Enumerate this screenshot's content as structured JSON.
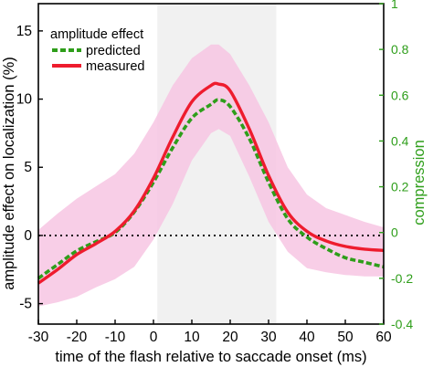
{
  "chart_data": {
    "type": "line",
    "title": "",
    "xlabel": "time of the flash relative to saccade onset (ms)",
    "ylabel": "amplitude effect on localization (%)",
    "y2label": "compression",
    "xlim": [
      -30,
      60
    ],
    "ylim": [
      -6.5,
      17.0
    ],
    "y2lim": [
      -0.4,
      1.0
    ],
    "xticks": [
      -30,
      -20,
      -10,
      0,
      10,
      20,
      30,
      40,
      50,
      60
    ],
    "yticks": [
      -5,
      0,
      5,
      10,
      15
    ],
    "y2ticks": [
      -0.4,
      -0.2,
      0,
      0.2,
      0.4,
      0.6,
      0.8,
      1
    ],
    "y2ticklabels": [
      "-0.4",
      "-0.2",
      "0",
      "0.2",
      "0.4",
      "0.6",
      "0.8",
      "1"
    ],
    "zero_line": 0,
    "saccade_window": [
      1,
      32
    ],
    "legend": {
      "title": "amplitude effect",
      "placement": "top-left",
      "entries": [
        {
          "label": "predicted",
          "series": "predicted"
        },
        {
          "label": "measured",
          "series": "measured"
        }
      ]
    },
    "series": [
      {
        "name": "measured",
        "axis": "left",
        "color": "#ee1c2e",
        "style": "solid",
        "x": [
          -30,
          -25,
          -20,
          -15,
          -10,
          -5,
          0,
          5,
          10,
          15,
          17,
          20,
          25,
          30,
          35,
          40,
          45,
          50,
          55,
          60
        ],
        "y": [
          -3.5,
          -2.5,
          -1.4,
          -0.6,
          0.3,
          1.8,
          4.2,
          7.2,
          9.8,
          11.0,
          11.1,
          10.6,
          7.8,
          4.4,
          1.7,
          0.3,
          -0.4,
          -0.8,
          -1.0,
          -1.1
        ]
      },
      {
        "name": "predicted",
        "axis": "right",
        "color": "#2e9e1a",
        "style": "dashed",
        "x": [
          -30,
          -25,
          -20,
          -15,
          -10,
          -5,
          0,
          5,
          10,
          15,
          17,
          20,
          25,
          30,
          35,
          40,
          45,
          50,
          55,
          60
        ],
        "y": [
          -0.2,
          -0.14,
          -0.08,
          -0.04,
          0.0,
          0.09,
          0.22,
          0.37,
          0.5,
          0.56,
          0.58,
          0.55,
          0.41,
          0.22,
          0.06,
          -0.02,
          -0.07,
          -0.11,
          -0.13,
          -0.15
        ]
      }
    ],
    "confidence_band": {
      "series": "measured",
      "color": "#f7c6e3",
      "x": [
        -30,
        -25,
        -20,
        -15,
        -10,
        -5,
        0,
        5,
        10,
        15,
        17,
        20,
        25,
        30,
        35,
        40,
        45,
        50,
        55,
        60
      ],
      "upper": [
        0.4,
        1.6,
        2.7,
        3.6,
        4.5,
        6.0,
        8.3,
        11.0,
        13.0,
        14.0,
        14.0,
        13.3,
        11.0,
        8.3,
        5.0,
        3.0,
        2.0,
        1.5,
        1.0,
        0.6
      ],
      "lower": [
        -5.2,
        -4.9,
        -4.5,
        -3.8,
        -3.2,
        -2.3,
        -0.3,
        2.3,
        5.5,
        7.5,
        7.8,
        7.3,
        4.3,
        1.0,
        -1.2,
        -2.4,
        -2.7,
        -2.9,
        -3.0,
        -3.0
      ]
    }
  }
}
